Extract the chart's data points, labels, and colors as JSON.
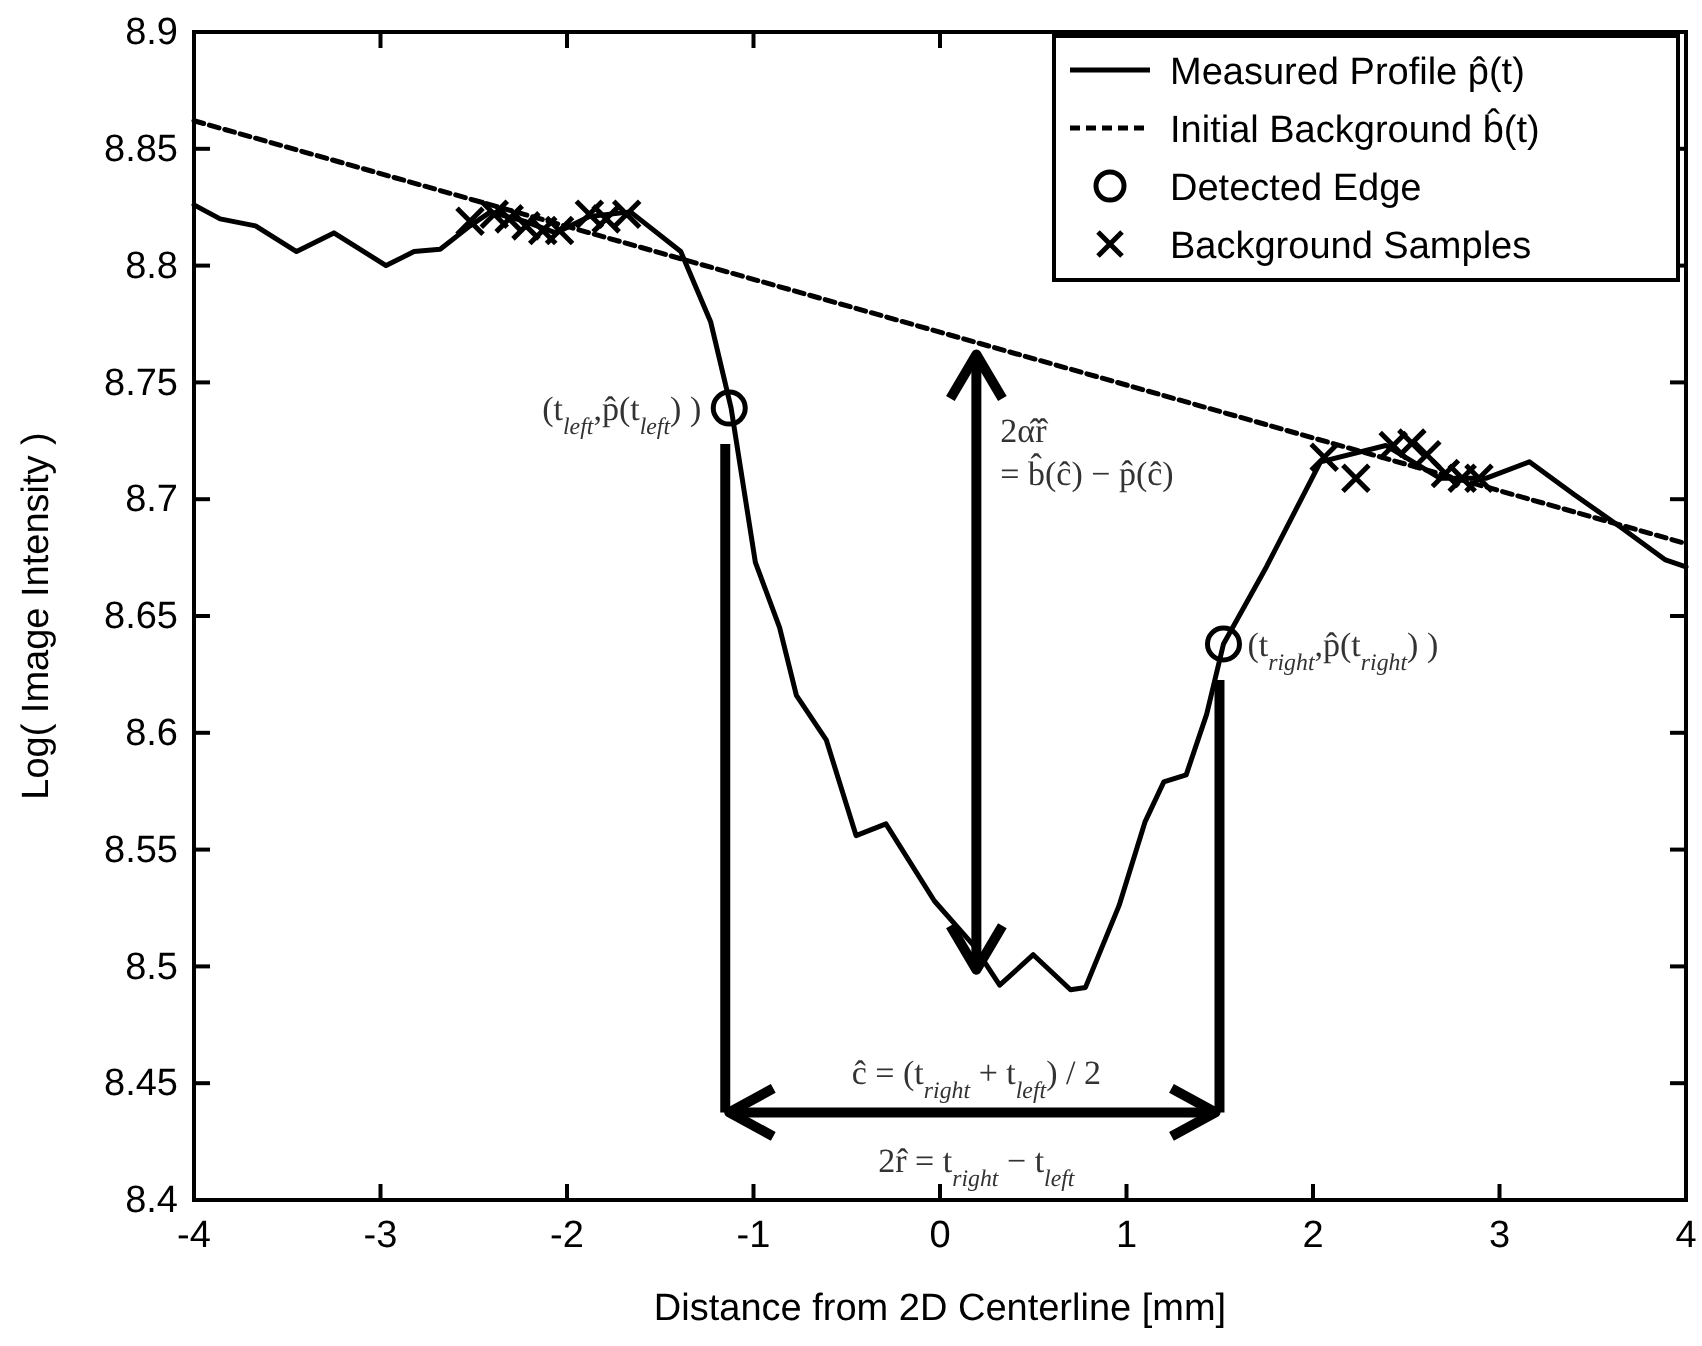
{
  "chart_data": {
    "type": "line",
    "xlabel": "Distance from 2D Centerline [mm]",
    "ylabel": "Log( Image Intensity )",
    "xlim": [
      -4,
      4
    ],
    "ylim": [
      8.4,
      8.9
    ],
    "xticks": [
      -4,
      -3,
      -2,
      -1,
      0,
      1,
      2,
      3,
      4
    ],
    "yticks": [
      8.4,
      8.45,
      8.5,
      8.55,
      8.6,
      8.65,
      8.7,
      8.75,
      8.8,
      8.85,
      8.9
    ],
    "grid": false,
    "legend": "top right",
    "series": [
      {
        "name": "Measured Profile p̂(t)",
        "type": "line",
        "line_style": "solid",
        "marker": "none",
        "color": "#000000",
        "x": [
          -4,
          -3.86,
          -3.67,
          -3.45,
          -3.25,
          -2.97,
          -2.82,
          -2.68,
          -2.52,
          -2.41,
          -2.23,
          -2.06,
          -1.88,
          -1.66,
          -1.39,
          -1.23,
          -1.12,
          -0.99,
          -0.86,
          -0.77,
          -0.61,
          -0.45,
          -0.29,
          -0.03,
          0.18,
          0.32,
          0.5,
          0.7,
          0.78,
          0.96,
          1.1,
          1.2,
          1.32,
          1.43,
          1.52,
          1.75,
          2.04,
          2.39,
          2.68,
          2.93,
          3.16,
          3.4,
          3.65,
          3.89,
          4
        ],
        "values": [
          8.826,
          8.82,
          8.817,
          8.806,
          8.814,
          8.8,
          8.806,
          8.807,
          8.817,
          8.823,
          8.819,
          8.814,
          8.821,
          8.823,
          8.806,
          8.776,
          8.739,
          8.673,
          8.645,
          8.616,
          8.597,
          8.556,
          8.561,
          8.528,
          8.509,
          8.492,
          8.505,
          8.49,
          8.491,
          8.526,
          8.562,
          8.579,
          8.582,
          8.608,
          8.638,
          8.671,
          8.716,
          8.723,
          8.709,
          8.709,
          8.716,
          8.702,
          8.688,
          8.674,
          8.671
        ]
      },
      {
        "name": "Initial Background b̂(t)",
        "type": "line",
        "line_style": "dashed",
        "marker": "none",
        "color": "#000000",
        "x": [
          -4,
          4
        ],
        "values": [
          8.862,
          8.681
        ]
      },
      {
        "name": "Detected Edge",
        "type": "scatter",
        "marker": "circle",
        "color": "#000000",
        "x": [
          -1.13,
          1.52
        ],
        "values": [
          8.739,
          8.638
        ]
      },
      {
        "name": "Background Samples",
        "type": "scatter",
        "marker": "cross",
        "color": "#000000",
        "x": [
          -2.52,
          -2.39,
          -2.31,
          -2.22,
          -2.13,
          -2.04,
          -1.88,
          -1.79,
          -1.68,
          2.06,
          2.23,
          2.43,
          2.53,
          2.61,
          2.71,
          2.8,
          2.89
        ],
        "values": [
          8.819,
          8.822,
          8.82,
          8.817,
          8.815,
          8.815,
          8.822,
          8.82,
          8.822,
          8.718,
          8.709,
          8.723,
          8.724,
          8.719,
          8.711,
          8.709,
          8.709
        ]
      }
    ],
    "annotations": [
      {
        "text": "(t$_{left}$,p̂(t$_{left}$) )",
        "x": -1.13,
        "y": 8.739
      },
      {
        "text": "(t$_{right}$,p̂(t$_{right}$) )",
        "x": 1.52,
        "y": 8.638
      },
      "2α̂r̂\n= b̂(ĉ) − p̂(ĉ)",
      "ĉ = (t$_{right}$ + t$_{left}$) / 2",
      "2r̂ = t$_{right}$ − t$_{left}$"
    ]
  }
}
